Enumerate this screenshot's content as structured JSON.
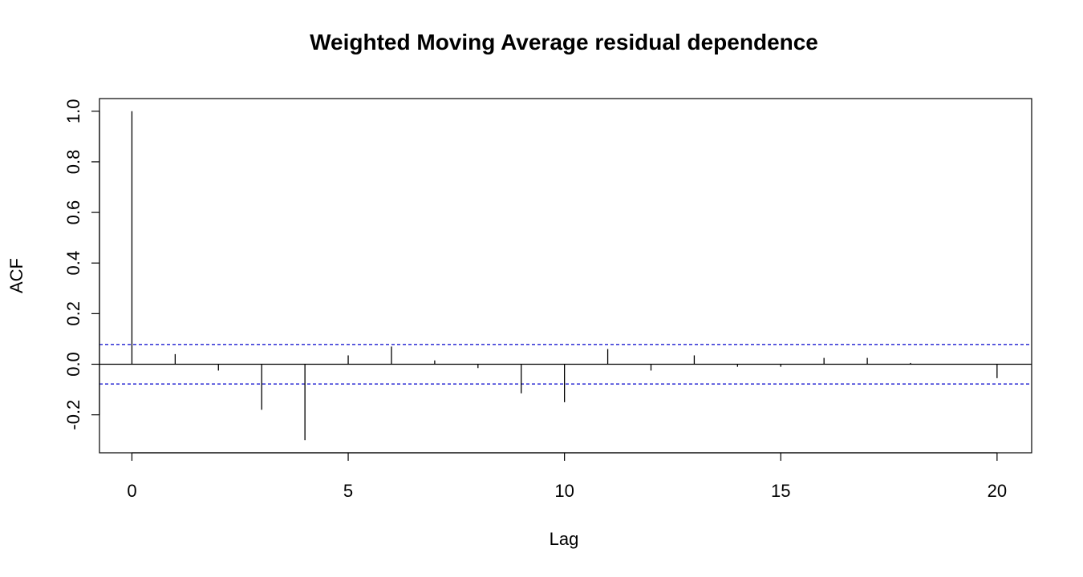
{
  "chart_data": {
    "type": "bar",
    "title": "Weighted Moving Average residual dependence",
    "xlabel": "Lag",
    "ylabel": "ACF",
    "xlim": [
      -0.75,
      20.8
    ],
    "ylim": [
      -0.35,
      1.05
    ],
    "x_ticks": [
      "0",
      "5",
      "10",
      "15",
      "20"
    ],
    "y_ticks": [
      "-0.2",
      "0.0",
      "0.2",
      "0.4",
      "0.6",
      "0.8",
      "1.0"
    ],
    "confidence_bound": 0.078,
    "confidence_color": "#0000cc",
    "lags": [
      0,
      1,
      2,
      3,
      4,
      5,
      6,
      7,
      8,
      9,
      10,
      11,
      12,
      13,
      14,
      15,
      16,
      17,
      18,
      19,
      20
    ],
    "values": [
      1.0,
      0.04,
      -0.025,
      -0.18,
      -0.3,
      0.035,
      0.07,
      0.015,
      -0.015,
      -0.115,
      -0.15,
      0.06,
      -0.025,
      0.035,
      -0.01,
      -0.01,
      0.025,
      0.025,
      0.005,
      0.0,
      -0.055
    ]
  }
}
